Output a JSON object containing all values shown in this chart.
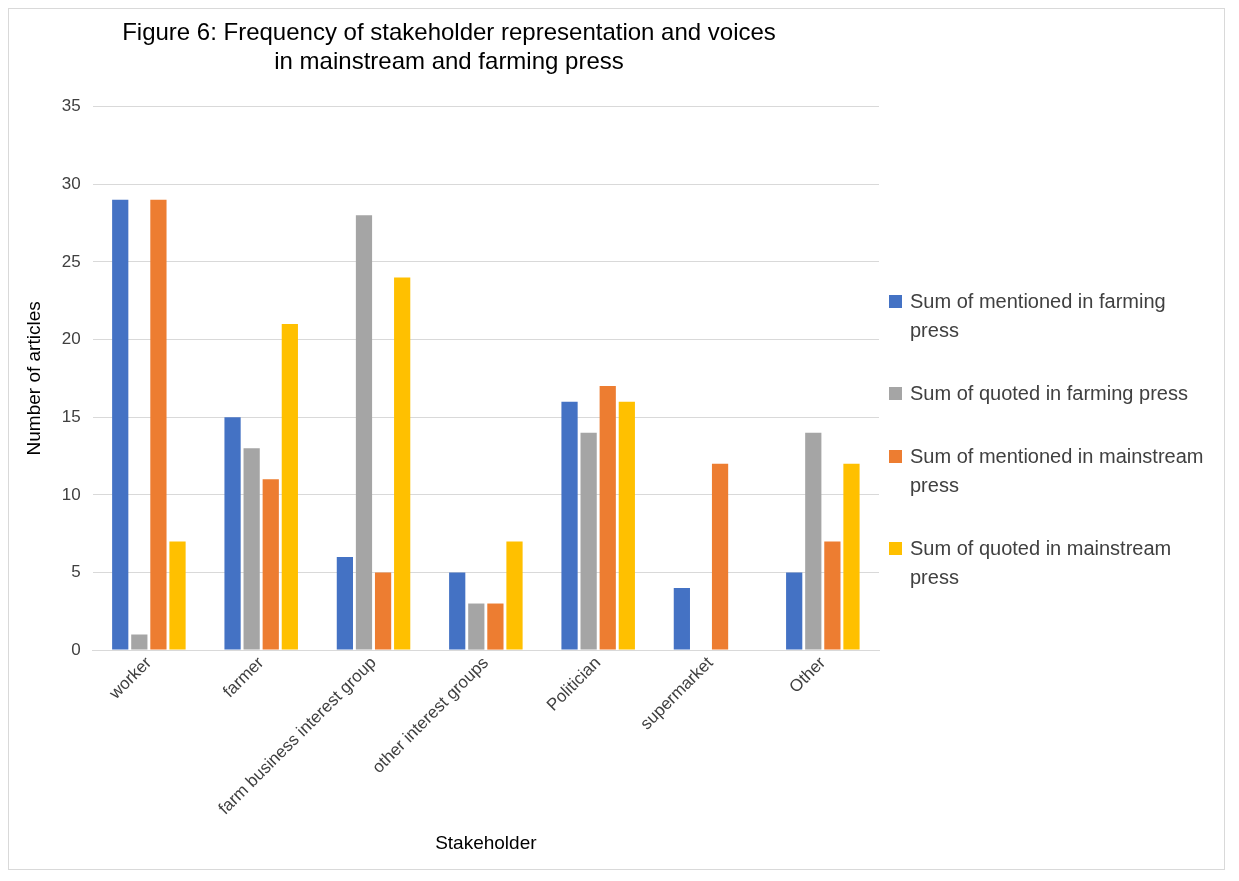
{
  "chart_data": {
    "type": "bar",
    "title": "Figure 6: Frequency of stakeholder representation and voices in mainstream and farming press",
    "xlabel": "Stakeholder",
    "ylabel": "Number of articles",
    "categories": [
      "worker",
      "farmer",
      "farm business interest group",
      "other interest groups",
      "Politician",
      "supermarket",
      "Other"
    ],
    "series": [
      {
        "name": "Sum of mentioned in farming press",
        "color": "#4472c4",
        "values": [
          29,
          15,
          6,
          5,
          16,
          4,
          5
        ]
      },
      {
        "name": "Sum of quoted in farming press",
        "color": "#a5a5a5",
        "values": [
          1,
          13,
          28,
          3,
          14,
          null,
          14
        ]
      },
      {
        "name": "Sum of mentioned in mainstream press",
        "color": "#ed7d31",
        "values": [
          29,
          11,
          5,
          3,
          17,
          12,
          7
        ]
      },
      {
        "name": "Sum of quoted in mainstream press",
        "color": "#ffc000",
        "values": [
          7,
          21,
          24,
          7,
          16,
          null,
          12
        ]
      }
    ],
    "ylim": [
      0,
      35
    ],
    "yticks": [
      0,
      5,
      10,
      15,
      20,
      25,
      30,
      35
    ],
    "grid": "y",
    "legend": "right"
  }
}
